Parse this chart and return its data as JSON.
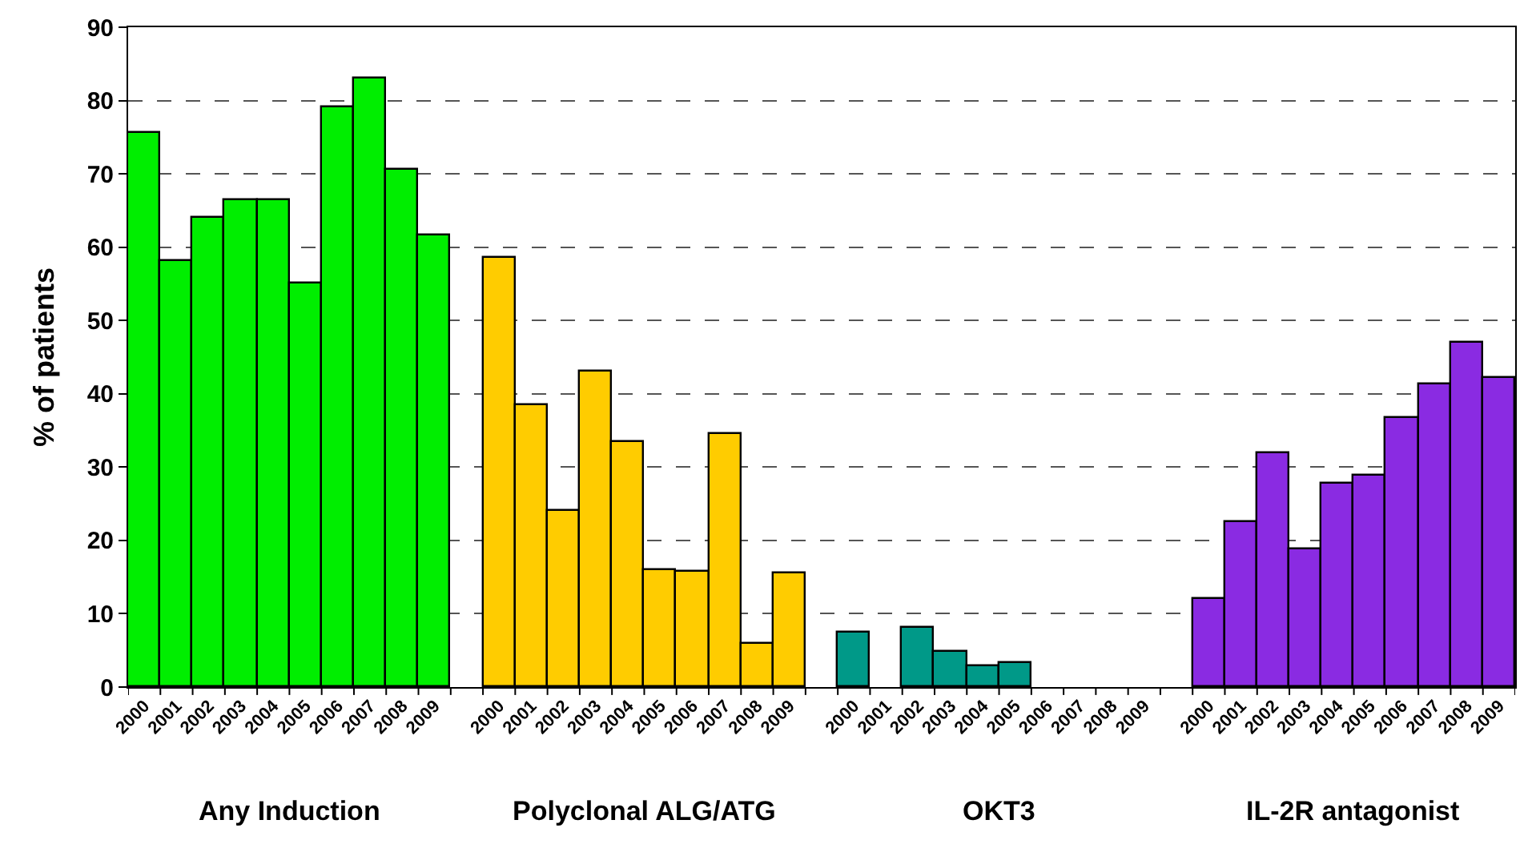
{
  "chart_data": {
    "type": "bar",
    "ylabel": "% of patients",
    "categories": [
      "2000",
      "2001",
      "2002",
      "2003",
      "2004",
      "2005",
      "2006",
      "2007",
      "2008",
      "2009",
      null,
      "2000",
      "2001",
      "2002",
      "2003",
      "2004",
      "2005",
      "2006",
      "2007",
      "2008",
      "2009",
      null,
      "2000",
      "2001",
      "2002",
      "2003",
      "2004",
      "2005",
      "2006",
      "2007",
      "2008",
      "2009",
      null,
      "2000",
      "2001",
      "2002",
      "2003",
      "2004",
      "2005",
      "2006",
      "2007",
      "2008",
      "2009"
    ],
    "series": [
      {
        "color": "#00ee00",
        "values": [
          75.5,
          58,
          64,
          66.5,
          66.5,
          55,
          79,
          83,
          70.5,
          61.5,
          null,
          null,
          null,
          null,
          null,
          null,
          null,
          null,
          null,
          null,
          null,
          null,
          null,
          null,
          null,
          null,
          null,
          null,
          null,
          null,
          null,
          null,
          null,
          null,
          null,
          null,
          null,
          null,
          null,
          null,
          null,
          null,
          null
        ]
      },
      {
        "color": "#ffcc00",
        "values": [
          null,
          null,
          null,
          null,
          null,
          null,
          null,
          null,
          null,
          null,
          null,
          58.5,
          38.5,
          24,
          43,
          33.5,
          16,
          15.8,
          34.5,
          6,
          15.5,
          null,
          null,
          null,
          null,
          null,
          null,
          null,
          null,
          null,
          null,
          null,
          null,
          null,
          null,
          null,
          null,
          null,
          null,
          null,
          null,
          null,
          null
        ]
      },
      {
        "color": "#009988",
        "values": [
          null,
          null,
          null,
          null,
          null,
          null,
          null,
          null,
          null,
          null,
          null,
          null,
          null,
          null,
          null,
          null,
          null,
          null,
          null,
          null,
          null,
          null,
          7.5,
          null,
          8.1,
          4.7,
          2.8,
          3.3,
          null,
          null,
          null,
          null,
          null,
          null,
          null,
          null,
          null,
          null,
          null,
          null,
          null,
          null,
          null
        ]
      },
      {
        "color": "#8a2be2",
        "values": [
          null,
          null,
          null,
          null,
          null,
          null,
          null,
          null,
          null,
          null,
          null,
          null,
          null,
          null,
          null,
          null,
          null,
          null,
          null,
          null,
          null,
          null,
          null,
          null,
          null,
          null,
          null,
          null,
          null,
          null,
          null,
          null,
          null,
          12.1,
          22.6,
          31.8,
          18.7,
          27.7,
          28.9,
          36.7,
          41.2,
          46.9,
          42.2
        ]
      }
    ],
    "annotations": [
      "Any Induction",
      "Polyclonal ALG/ATG",
      "OKT3",
      "IL-2R antagonist"
    ],
    "ylim": [
      0,
      90
    ],
    "yticks": [
      0,
      10,
      20,
      30,
      40,
      50,
      60,
      70,
      80,
      90
    ],
    "grid": "y"
  }
}
